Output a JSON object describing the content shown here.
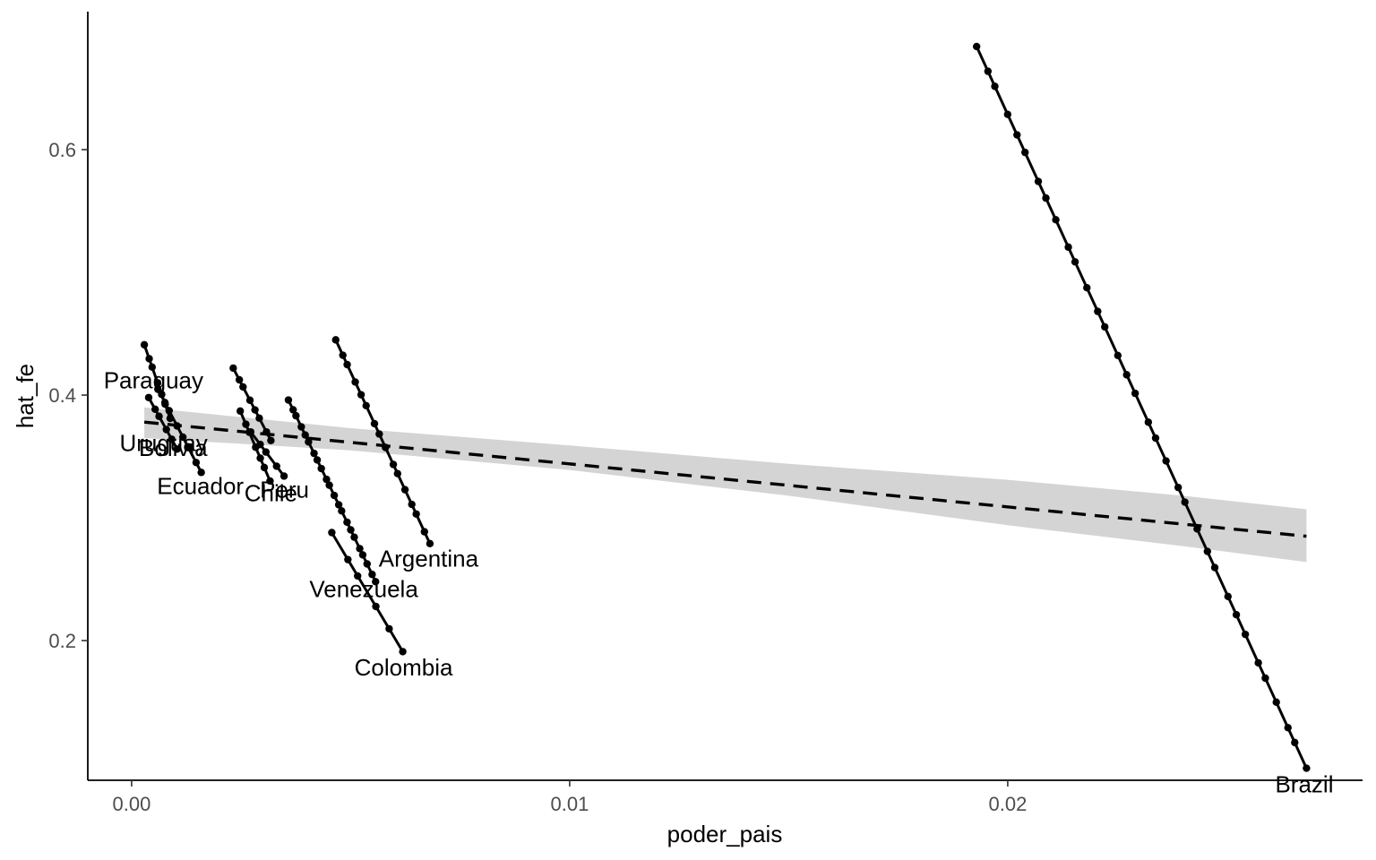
{
  "chart_data": {
    "type": "scatter",
    "title": "",
    "xlabel": "poder_pais",
    "ylabel": "hat_fe",
    "xlim": [
      -0.001,
      0.0281
    ],
    "ylim": [
      0.0862,
      0.7124
    ],
    "x_ticks": [
      {
        "value": 0.0,
        "label": "0.00"
      },
      {
        "value": 0.01,
        "label": "0.01"
      },
      {
        "value": 0.02,
        "label": "0.02"
      }
    ],
    "y_ticks": [
      {
        "value": 0.2,
        "label": "0.2"
      },
      {
        "value": 0.4,
        "label": "0.4"
      },
      {
        "value": 0.6,
        "label": "0.6"
      }
    ],
    "grid": false,
    "legend": "none",
    "colors": {
      "points": "#000000",
      "lines": "#000000",
      "trend": "#000000",
      "ribbon": "#d4d4d4",
      "axis": "#000000",
      "tick_text": "#4d4d4d"
    },
    "series": [
      {
        "label": "Paraguay",
        "x_start": 0.00029,
        "y_start": 0.441,
        "x_end": 0.00088,
        "y_end": 0.381,
        "n": 7,
        "label_x": 0.0005,
        "label_y": 0.412
      },
      {
        "label": "Uruguay",
        "x_start": 0.00039,
        "y_start": 0.398,
        "x_end": 0.00104,
        "y_end": 0.356,
        "n": 6,
        "label_x": 0.00073,
        "label_y": 0.361
      },
      {
        "label": "Bolivia",
        "x_start": 0.0006,
        "y_start": 0.405,
        "x_end": 0.00159,
        "y_end": 0.337,
        "n": 8,
        "label_x": 0.00095,
        "label_y": 0.357
      },
      {
        "label": "Ecuador",
        "x_start": 0.00232,
        "y_start": 0.422,
        "x_end": 0.00318,
        "y_end": 0.363,
        "n": 8,
        "label_x": 0.00157,
        "label_y": 0.326
      },
      {
        "label": "Chile",
        "x_start": 0.00248,
        "y_start": 0.387,
        "x_end": 0.00316,
        "y_end": 0.33,
        "n": 7,
        "label_x": 0.00318,
        "label_y": 0.32
      },
      {
        "label": "Peru",
        "x_start": 0.00272,
        "y_start": 0.37,
        "x_end": 0.00348,
        "y_end": 0.334,
        "n": 5,
        "label_x": 0.00349,
        "label_y": 0.323
      },
      {
        "label": "Argentina",
        "x_start": 0.00466,
        "y_start": 0.445,
        "x_end": 0.00681,
        "y_end": 0.279,
        "n": 16,
        "label_x": 0.00678,
        "label_y": 0.267
      },
      {
        "label": "Venezuela",
        "x_start": 0.00358,
        "y_start": 0.396,
        "x_end": 0.00557,
        "y_end": 0.248,
        "n": 22,
        "label_x": 0.0053,
        "label_y": 0.242
      },
      {
        "label": "Colombia",
        "x_start": 0.00457,
        "y_start": 0.288,
        "x_end": 0.00619,
        "y_end": 0.191,
        "n": 6,
        "label_x": 0.00621,
        "label_y": 0.178
      },
      {
        "label": "Brazil",
        "x_start": 0.01929,
        "y_start": 0.684,
        "x_end": 0.02682,
        "y_end": 0.096,
        "n": 34,
        "label_x": 0.02677,
        "label_y": 0.083
      }
    ],
    "trend": {
      "style": "dashed",
      "x_start": 0.00029,
      "y_start": 0.378,
      "x_end": 0.02682,
      "y_end": 0.285,
      "ci": [
        {
          "x": 0.00029,
          "lo": 0.365,
          "hi": 0.39
        },
        {
          "x": 0.005,
          "lo": 0.355,
          "hi": 0.373
        },
        {
          "x": 0.01,
          "lo": 0.339,
          "hi": 0.359
        },
        {
          "x": 0.015,
          "lo": 0.318,
          "hi": 0.344
        },
        {
          "x": 0.02,
          "lo": 0.294,
          "hi": 0.331
        },
        {
          "x": 0.024,
          "lo": 0.277,
          "hi": 0.318
        },
        {
          "x": 0.02682,
          "lo": 0.264,
          "hi": 0.307
        }
      ]
    }
  }
}
